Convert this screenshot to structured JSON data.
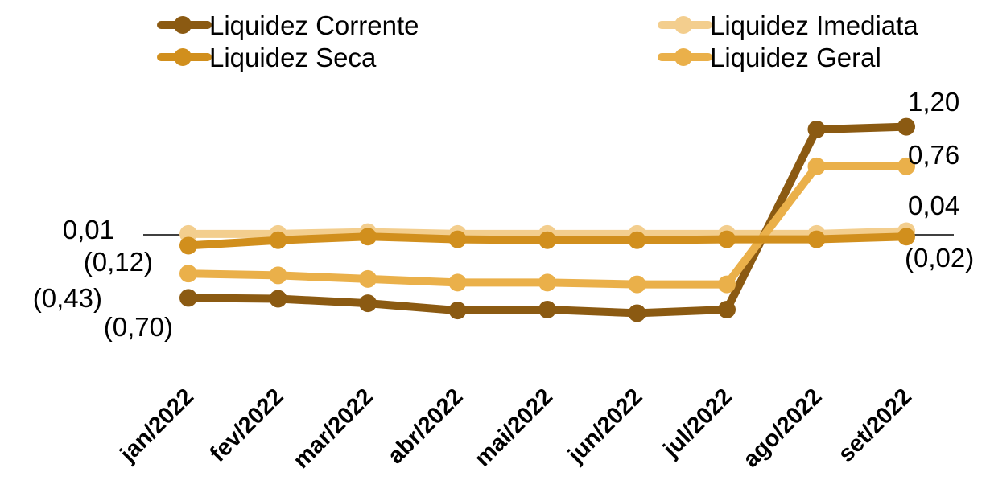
{
  "chart_data": {
    "type": "line",
    "categories": [
      "jan/2022",
      "fev/2022",
      "mar/2022",
      "abr/2022",
      "mai/2022",
      "jun/2022",
      "jul/2022",
      "ago/2022",
      "set/2022"
    ],
    "series": [
      {
        "name": "Liquidez Corrente",
        "color": "#8B5A12",
        "values": [
          -0.7,
          -0.71,
          -0.76,
          -0.84,
          -0.83,
          -0.87,
          -0.83,
          1.17,
          1.2
        ]
      },
      {
        "name": "Liquidez Imediata",
        "color": "#F3CE8E",
        "values": [
          0.01,
          0.01,
          0.03,
          0.01,
          0.01,
          0.01,
          0.01,
          0.01,
          0.04
        ]
      },
      {
        "name": "Liquidez Seca",
        "color": "#D18F1D",
        "values": [
          -0.12,
          -0.06,
          -0.02,
          -0.05,
          -0.06,
          -0.06,
          -0.05,
          -0.05,
          -0.02
        ]
      },
      {
        "name": "Liquidez Geral",
        "color": "#EAB04A",
        "values": [
          -0.43,
          -0.45,
          -0.49,
          -0.53,
          -0.53,
          -0.55,
          -0.55,
          0.76,
          0.76
        ]
      }
    ],
    "data_labels": {
      "left": [
        "0,01",
        "(0,12)",
        "(0,43)",
        "(0,70)"
      ],
      "right": [
        "1,20",
        "0,76",
        "0,04",
        "(0,02)"
      ]
    },
    "ylim": [
      -1.2,
      1.5
    ],
    "grid": false,
    "legend_position": "top"
  }
}
